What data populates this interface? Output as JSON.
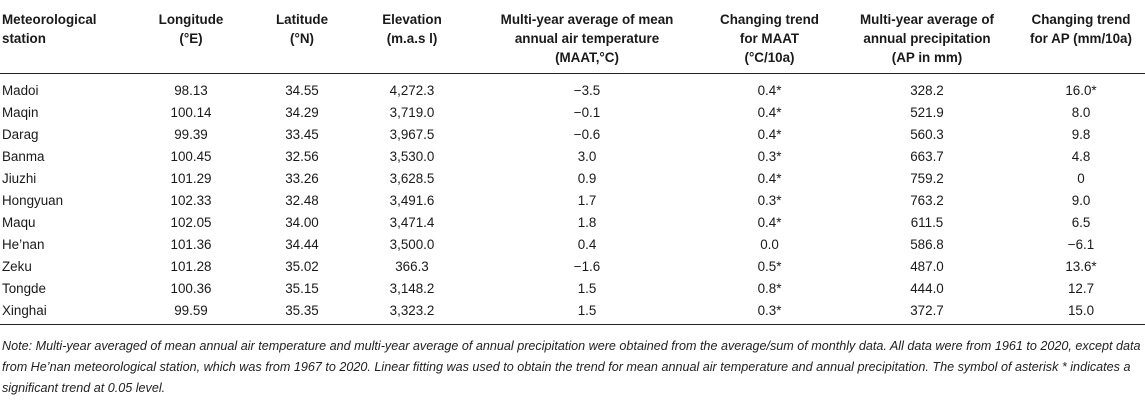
{
  "table": {
    "headers": [
      [
        "Meteorological",
        "station"
      ],
      [
        "Longitude",
        "(°E)"
      ],
      [
        "Latitude",
        "(°N)"
      ],
      [
        "Elevation",
        "(m.a.s l)"
      ],
      [
        "Multi-year average of mean",
        "annual air temperature",
        "(MAAT,°C)"
      ],
      [
        "Changing trend",
        "for MAAT",
        "(°C/10a)"
      ],
      [
        "Multi-year average of",
        "annual precipitation",
        "(AP in mm)"
      ],
      [
        "Changing trend",
        "for AP (mm/10a)"
      ]
    ],
    "rows": [
      [
        "Madoi",
        "98.13",
        "34.55",
        "4,272.3",
        "−3.5",
        "0.4*",
        "328.2",
        "16.0*"
      ],
      [
        "Maqin",
        "100.14",
        "34.29",
        "3,719.0",
        "−0.1",
        "0.4*",
        "521.9",
        "8.0"
      ],
      [
        "Darag",
        "99.39",
        "33.45",
        "3,967.5",
        "−0.6",
        "0.4*",
        "560.3",
        "9.8"
      ],
      [
        "Banma",
        "100.45",
        "32.56",
        "3,530.0",
        "3.0",
        "0.3*",
        "663.7",
        "4.8"
      ],
      [
        "Jiuzhi",
        "101.29",
        "33.26",
        "3,628.5",
        "0.9",
        "0.4*",
        "759.2",
        "0"
      ],
      [
        "Hongyuan",
        "102.33",
        "32.48",
        "3,491.6",
        "1.7",
        "0.3*",
        "763.2",
        "9.0"
      ],
      [
        "Maqu",
        "102.05",
        "34.00",
        "3,471.4",
        "1.8",
        "0.4*",
        "611.5",
        "6.5"
      ],
      [
        "He’nan",
        "101.36",
        "34.44",
        "3,500.0",
        "0.4",
        "0.0",
        "586.8",
        "−6.1"
      ],
      [
        "Zeku",
        "101.28",
        "35.02",
        "366.3",
        "−1.6",
        "0.5*",
        "487.0",
        "13.6*"
      ],
      [
        "Tongde",
        "100.36",
        "35.15",
        "3,148.2",
        "1.5",
        "0.8*",
        "444.0",
        "12.7"
      ],
      [
        "Xinghai",
        "99.59",
        "35.35",
        "3,323.2",
        "1.5",
        "0.3*",
        "372.7",
        "15.0"
      ]
    ]
  },
  "note": "Note: Multi-year averaged of mean annual air temperature and multi-year average of annual precipitation were obtained from the average/sum of monthly data. All data were from 1961 to 2020, except data from He’nan meteorological station, which was from 1967 to 2020. Linear fitting was used to obtain the trend for mean annual air temperature and annual precipitation. The symbol of asterisk * indicates a significant trend at 0.05 level."
}
